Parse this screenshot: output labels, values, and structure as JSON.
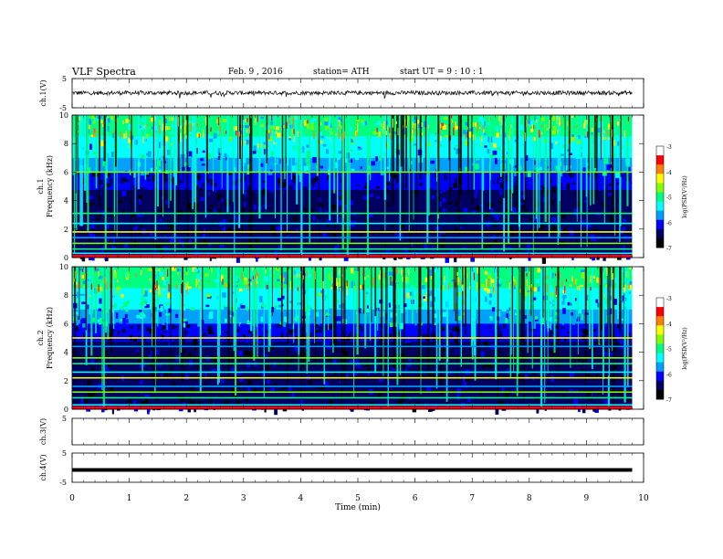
{
  "header": {
    "title": "VLF  Spectra",
    "date": "Feb. 9  , 2016",
    "station": "station= ATH",
    "start": "start  UT  =   9  : 10 : 1"
  },
  "chart_data": [
    {
      "type": "line",
      "panel": "ch1",
      "ylabel": "ch.1(V)",
      "ylim": [
        -5,
        5
      ],
      "yticks": [
        5,
        -5
      ],
      "xlim": [
        0,
        10
      ],
      "series": [
        {
          "description_level": 0.1,
          "values_range": [
            -1.5,
            1.0
          ]
        }
      ]
    },
    {
      "type": "heatmap",
      "panel": "ch1-spectrogram",
      "ylabel": "Frequency  (kHz)",
      "channel_label": "ch.1",
      "ylim": [
        0,
        10
      ],
      "yticks": [
        0,
        2,
        4,
        6,
        8,
        10
      ],
      "xlim": [
        0,
        9.8
      ],
      "colorbar": {
        "label": "log(PSD(V²/Hz)",
        "ticks": [
          -3,
          -4,
          -5,
          -6,
          -7
        ],
        "range": [
          -7,
          -3
        ]
      },
      "bands_khz": [
        0.3,
        0.6,
        1.0,
        1.4,
        1.8,
        2.4,
        3.1,
        6.0
      ]
    },
    {
      "type": "heatmap",
      "panel": "ch2-spectrogram",
      "ylabel": "Frequency  (kHz)",
      "channel_label": "ch.2",
      "ylim": [
        0,
        10
      ],
      "yticks": [
        0,
        2,
        4,
        6,
        8,
        10
      ],
      "xlim": [
        0,
        9.8
      ],
      "colorbar": {
        "label": "log(PSD(V²/Hz)",
        "ticks": [
          -3,
          -4,
          -5,
          -6,
          -7
        ],
        "range": [
          -7,
          -3
        ]
      },
      "bands_khz": [
        0.3,
        0.8,
        1.2,
        1.6,
        2.2,
        2.6,
        3.2,
        3.6,
        4.4,
        5.0
      ]
    },
    {
      "type": "line",
      "panel": "ch3",
      "ylabel": "ch.3(V)",
      "ylim": [
        -5,
        5
      ],
      "yticks": [
        5
      ],
      "xlim": [
        0,
        10
      ]
    },
    {
      "type": "line",
      "panel": "ch4",
      "ylabel": "ch.4(V)",
      "ylim": [
        -5,
        5
      ],
      "yticks": [
        5,
        -5
      ],
      "xlim": [
        0,
        10
      ],
      "series": [
        {
          "constant_value": -0.8,
          "xrange": [
            0,
            9.8
          ]
        }
      ]
    }
  ],
  "xaxis": {
    "label": "Time  (min)",
    "ticks": [
      0,
      1,
      2,
      3,
      4,
      5,
      6,
      7,
      8,
      9,
      10
    ]
  },
  "colors": {
    "colormap": [
      "#000000",
      "#000060",
      "#0000ff",
      "#00a0ff",
      "#00ffff",
      "#00ff80",
      "#80ff00",
      "#ffff00",
      "#ff8000",
      "#ff0000",
      "#ffffff"
    ]
  }
}
